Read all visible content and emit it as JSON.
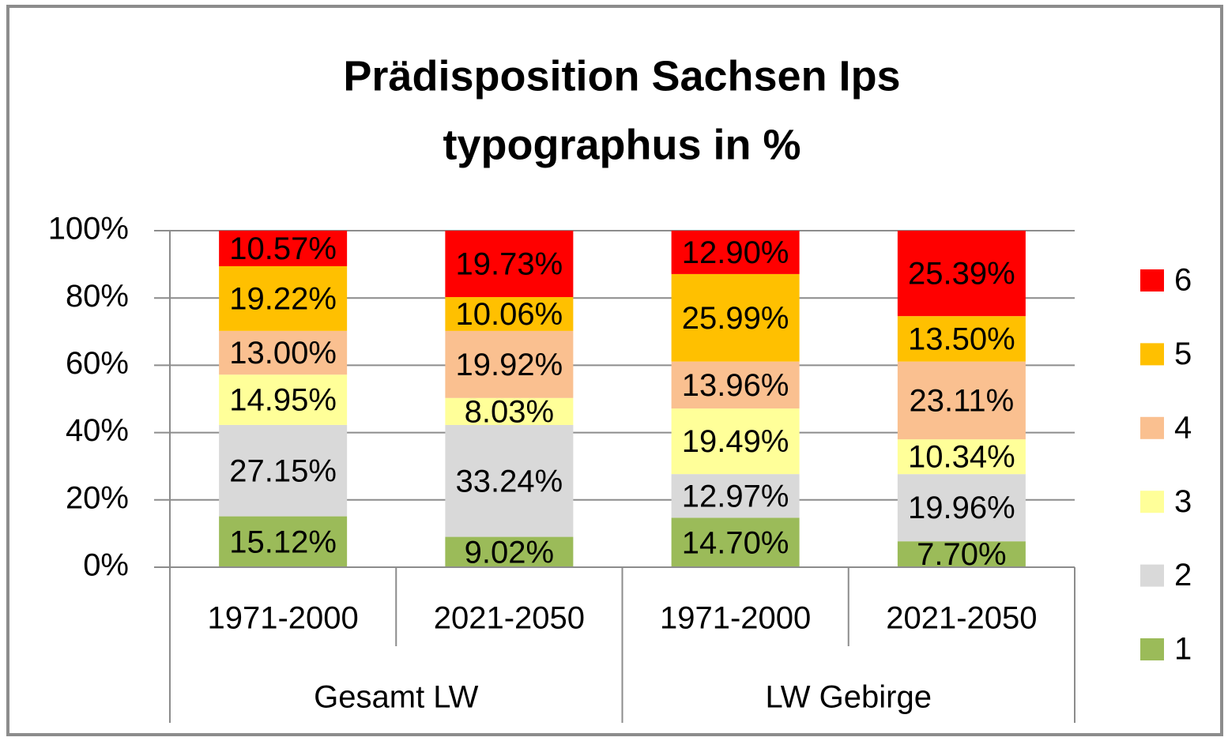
{
  "chart_data": {
    "type": "stacked_bar",
    "title": [
      "Prädisposition Sachsen Ips",
      "typographus in %"
    ],
    "categories": [
      "1971-2000",
      "2021-2050",
      "1971-2000",
      "2021-2050"
    ],
    "groups": [
      "Gesamt LW",
      "LW Gebirge"
    ],
    "series": [
      {
        "name": "1",
        "color": "#9bbb59",
        "values": [
          15.12,
          9.02,
          14.7,
          7.7
        ],
        "value_labels": [
          "15.12%",
          "9.02%",
          "14.70%",
          "7.70%"
        ]
      },
      {
        "name": "2",
        "color": "#d9d9d9",
        "values": [
          27.15,
          33.24,
          12.97,
          19.96
        ],
        "value_labels": [
          "27.15%",
          "33.24%",
          "12.97%",
          "19.96%"
        ]
      },
      {
        "name": "3",
        "color": "#ffff99",
        "values": [
          14.95,
          8.03,
          19.49,
          10.34
        ],
        "value_labels": [
          "14.95%",
          "8.03%",
          "19.49%",
          "10.34%"
        ]
      },
      {
        "name": "4",
        "color": "#fac090",
        "values": [
          13.0,
          19.92,
          13.96,
          23.11
        ],
        "value_labels": [
          "13.00%",
          "19.92%",
          "13.96%",
          "23.11%"
        ]
      },
      {
        "name": "5",
        "color": "#ffc000",
        "values": [
          19.22,
          10.06,
          25.99,
          13.5
        ],
        "value_labels": [
          "19.22%",
          "10.06%",
          "25.99%",
          "13.50%"
        ]
      },
      {
        "name": "6",
        "color": "#ff0000",
        "values": [
          10.57,
          19.73,
          12.9,
          25.39
        ],
        "value_labels": [
          "10.57%",
          "19.73%",
          "12.90%",
          "25.39%"
        ]
      }
    ],
    "ylim": [
      0,
      100
    ],
    "yticks": [
      {
        "value": 0,
        "label": "0%"
      },
      {
        "value": 20,
        "label": "20%"
      },
      {
        "value": 40,
        "label": "40%"
      },
      {
        "value": 60,
        "label": "60%"
      },
      {
        "value": 80,
        "label": "80%"
      },
      {
        "value": 100,
        "label": "100%"
      }
    ],
    "grid": true,
    "legend": "right"
  }
}
